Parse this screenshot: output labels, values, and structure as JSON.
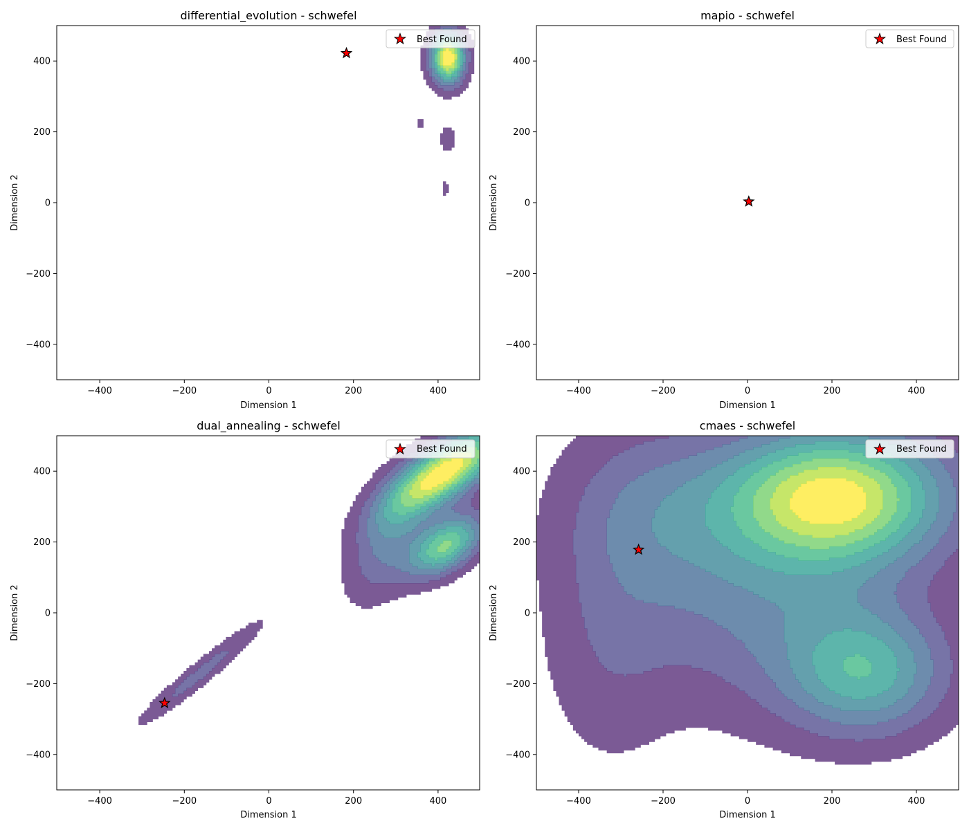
{
  "chart_data": [
    {
      "type": "contour",
      "title": "differential_evolution - schwefel",
      "xlabel": "Dimension 1",
      "ylabel": "Dimension 2",
      "xlim": [
        -500,
        500
      ],
      "ylim": [
        -500,
        500
      ],
      "xticks": [
        -400,
        -200,
        0,
        200,
        400
      ],
      "yticks": [
        -400,
        -200,
        0,
        200,
        400
      ],
      "tick_labels": [
        "−400",
        "−200",
        "0",
        "200",
        "400"
      ],
      "colormap": "viridis",
      "grid": false,
      "legend": {
        "label": "Best Found",
        "placement": "top-right"
      },
      "best_found": {
        "x": 185,
        "y": 422
      },
      "density_peaks": [
        {
          "x": 425,
          "y": 410,
          "sx": 28,
          "sy": 50,
          "rho": 0,
          "w": 1.0
        },
        {
          "x": 425,
          "y": 180,
          "sx": 14,
          "sy": 30,
          "rho": 0,
          "w": 0.14
        },
        {
          "x": 418,
          "y": 40,
          "sx": 11,
          "sy": 25,
          "rho": 0,
          "w": 0.09
        },
        {
          "x": 360,
          "y": 222,
          "sx": 9,
          "sy": 19,
          "rho": 0,
          "w": 0.09
        }
      ]
    },
    {
      "type": "contour",
      "title": "mapio - schwefel",
      "xlabel": "Dimension 1",
      "ylabel": "Dimension 2",
      "xlim": [
        -500,
        500
      ],
      "ylim": [
        -500,
        500
      ],
      "xticks": [
        -400,
        -200,
        0,
        200,
        400
      ],
      "yticks": [
        -400,
        -200,
        0,
        200,
        400
      ],
      "tick_labels": [
        "−400",
        "−200",
        "0",
        "200",
        "400"
      ],
      "colormap": "viridis",
      "grid": false,
      "legend": {
        "label": "Best Found",
        "placement": "top-right"
      },
      "best_found": {
        "x": 3,
        "y": 3
      },
      "density_peaks": []
    },
    {
      "type": "contour",
      "title": "dual_annealing - schwefel",
      "xlabel": "Dimension 1",
      "ylabel": "Dimension 2",
      "xlim": [
        -500,
        500
      ],
      "ylim": [
        -500,
        500
      ],
      "xticks": [
        -400,
        -200,
        0,
        200,
        400
      ],
      "yticks": [
        -400,
        -200,
        0,
        200,
        400
      ],
      "tick_labels": [
        "−400",
        "−200",
        "0",
        "200",
        "400"
      ],
      "colormap": "viridis",
      "grid": false,
      "legend": {
        "label": "Best Found",
        "placement": "top-right"
      },
      "best_found": {
        "x": -245,
        "y": -255
      },
      "density_peaks": [
        {
          "x": 420,
          "y": 400,
          "sx": 95,
          "sy": 85,
          "rho": 0.72,
          "w": 1.0
        },
        {
          "x": 420,
          "y": 190,
          "sx": 60,
          "sy": 60,
          "rho": 0.5,
          "w": 0.72
        },
        {
          "x": 285,
          "y": 210,
          "sx": 65,
          "sy": 115,
          "rho": 0.5,
          "w": 0.3
        },
        {
          "x": -160,
          "y": -170,
          "sx": 100,
          "sy": 100,
          "rho": 0.96,
          "w": 0.22
        }
      ]
    },
    {
      "type": "contour",
      "title": "cmaes - schwefel",
      "xlabel": "Dimension 1",
      "ylabel": "Dimension 2",
      "xlim": [
        -500,
        500
      ],
      "ylim": [
        -500,
        500
      ],
      "xticks": [
        -400,
        -200,
        0,
        200,
        400
      ],
      "yticks": [
        -400,
        -200,
        0,
        200,
        400
      ],
      "tick_labels": [
        "−400",
        "−200",
        "0",
        "200",
        "400"
      ],
      "colormap": "viridis",
      "grid": false,
      "legend": {
        "label": "Best Found",
        "placement": "top-right"
      },
      "best_found": {
        "x": -258,
        "y": 178
      },
      "density_peaks": [
        {
          "x": 210,
          "y": 330,
          "sx": 180,
          "sy": 130,
          "rho": 0,
          "w": 1.0
        },
        {
          "x": 280,
          "y": -170,
          "sx": 130,
          "sy": 120,
          "rho": 0,
          "w": 0.55
        },
        {
          "x": 60,
          "y": 60,
          "sx": 230,
          "sy": 230,
          "rho": 0,
          "w": 0.35
        },
        {
          "x": -230,
          "y": 300,
          "sx": 150,
          "sy": 170,
          "rho": 0,
          "w": 0.25
        },
        {
          "x": -330,
          "y": -80,
          "sx": 110,
          "sy": 250,
          "rho": 0,
          "w": 0.15
        }
      ]
    }
  ]
}
